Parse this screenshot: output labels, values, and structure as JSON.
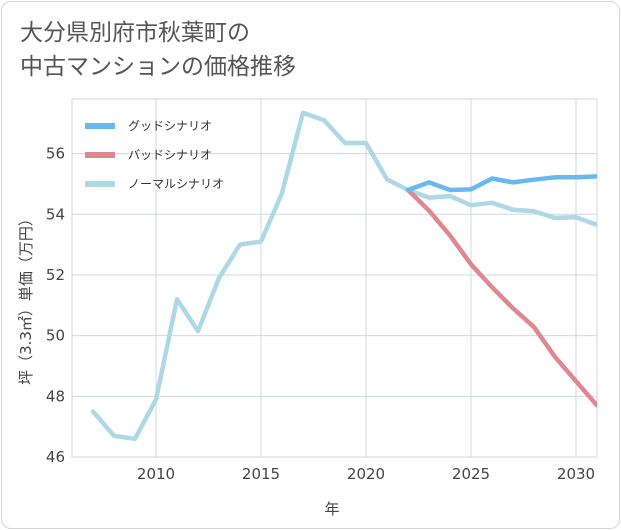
{
  "title_lines": [
    "大分県別府市秋葉町の",
    "中古マンションの価格推移"
  ],
  "chart_data": {
    "type": "line",
    "title": "大分県別府市秋葉町の中古マンションの価格推移",
    "xlabel": "年",
    "ylabel": "坪（3.3㎡）単価（万円）",
    "xlim": [
      2006,
      2031
    ],
    "ylim": [
      46,
      57.8
    ],
    "xticks": [
      2010,
      2015,
      2020,
      2025,
      2030
    ],
    "yticks": [
      46,
      48,
      50,
      52,
      54,
      56
    ],
    "legend_position": "top-left",
    "series": [
      {
        "name": "グッドシナリオ",
        "color": "#6ab9ee",
        "x": [
          2022,
          2023,
          2024,
          2025,
          2026,
          2027,
          2028,
          2029,
          2030,
          2031
        ],
        "values": [
          54.8,
          55.05,
          54.8,
          54.82,
          55.18,
          55.05,
          55.14,
          55.22,
          55.22,
          55.25
        ]
      },
      {
        "name": "バッドシナリオ",
        "color": "#e0888f",
        "x": [
          2022,
          2023,
          2024,
          2025,
          2026,
          2027,
          2028,
          2029,
          2030,
          2031
        ],
        "values": [
          54.8,
          54.12,
          53.3,
          52.35,
          51.6,
          50.9,
          50.28,
          49.3,
          48.5,
          47.7
        ]
      },
      {
        "name": "ノーマルシナリオ",
        "color": "#add8e6",
        "x": [
          2007,
          2008,
          2009,
          2010,
          2011,
          2012,
          2013,
          2014,
          2015,
          2016,
          2017,
          2018,
          2019,
          2020,
          2021,
          2022,
          2023,
          2024,
          2025,
          2026,
          2027,
          2028,
          2029,
          2030,
          2031
        ],
        "values": [
          47.5,
          46.7,
          46.6,
          47.9,
          51.2,
          50.15,
          51.9,
          53.0,
          53.1,
          54.7,
          57.35,
          57.1,
          56.35,
          56.35,
          55.15,
          54.8,
          54.55,
          54.6,
          54.3,
          54.38,
          54.15,
          54.1,
          53.88,
          53.9,
          53.65
        ]
      }
    ]
  }
}
